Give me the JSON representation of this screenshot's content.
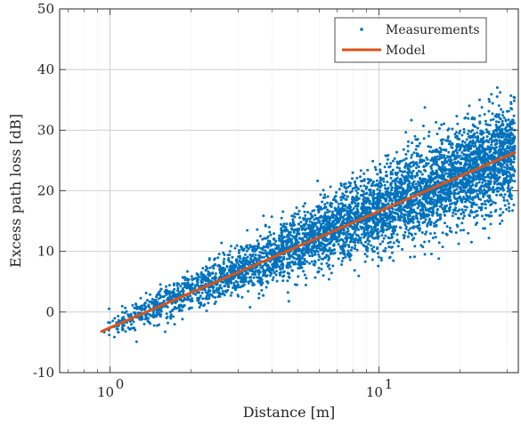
{
  "chart_data": {
    "type": "scatter",
    "xscale": "log",
    "xlim": [
      0.65,
      33
    ],
    "ylim": [
      -10,
      50
    ],
    "xlabel": "Distance [m]",
    "ylabel": "Excess path loss [dB]",
    "grid": true,
    "legend_position": "top-right",
    "x_ticks": [
      {
        "value": 1,
        "base": "10",
        "exp": "0"
      },
      {
        "value": 10,
        "base": "10",
        "exp": "1"
      }
    ],
    "y_ticks": [
      {
        "value": -10,
        "label": "-10"
      },
      {
        "value": 0,
        "label": "0"
      },
      {
        "value": 10,
        "label": "10"
      },
      {
        "value": 20,
        "label": "20"
      },
      {
        "value": 30,
        "label": "30"
      },
      {
        "value": 40,
        "label": "40"
      },
      {
        "value": 50,
        "label": "50"
      }
    ],
    "series": [
      {
        "name": "Measurements",
        "style": "points",
        "color": "#0072BD",
        "x_range": [
          0.93,
          32
        ],
        "trend_at_x_min": -3,
        "trend_at_x_max": 26.5,
        "spread_db": [
          {
            "x": 1,
            "sd": 1.1
          },
          {
            "x": 2,
            "sd": 1.6
          },
          {
            "x": 4,
            "sd": 2.4
          },
          {
            "x": 10,
            "sd": 3.3
          },
          {
            "x": 32,
            "sd": 4.2
          }
        ]
      },
      {
        "name": "Model",
        "style": "line",
        "color": "#D95319",
        "x": [
          0.93,
          32
        ],
        "y": [
          -3.2,
          26.3
        ]
      }
    ]
  }
}
